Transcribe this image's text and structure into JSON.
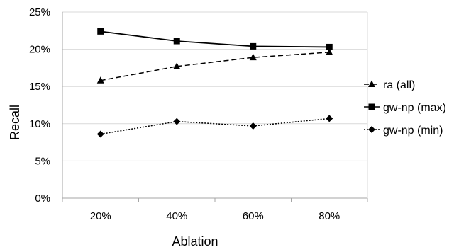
{
  "chart_data": {
    "type": "line",
    "title": "",
    "xlabel": "Ablation",
    "ylabel": "Recall",
    "categories": [
      "20%",
      "40%",
      "60%",
      "80%"
    ],
    "y_ticks": [
      "0%",
      "5%",
      "10%",
      "15%",
      "20%",
      "25%"
    ],
    "ylim": [
      0,
      25
    ],
    "y_unit": "%",
    "grid": "horizontal",
    "legend_position": "right",
    "series": [
      {
        "name": "ra (all)",
        "marker": "triangle",
        "dash": "dashed",
        "color": "#000000",
        "values": [
          15.8,
          17.7,
          18.9,
          19.6
        ]
      },
      {
        "name": "gw-np (max)",
        "marker": "square",
        "dash": "solid",
        "color": "#000000",
        "values": [
          22.4,
          21.1,
          20.4,
          20.3
        ]
      },
      {
        "name": "gw-np (min)",
        "marker": "diamond",
        "dash": "dotted",
        "color": "#000000",
        "values": [
          8.6,
          10.3,
          9.7,
          10.7
        ]
      }
    ]
  }
}
